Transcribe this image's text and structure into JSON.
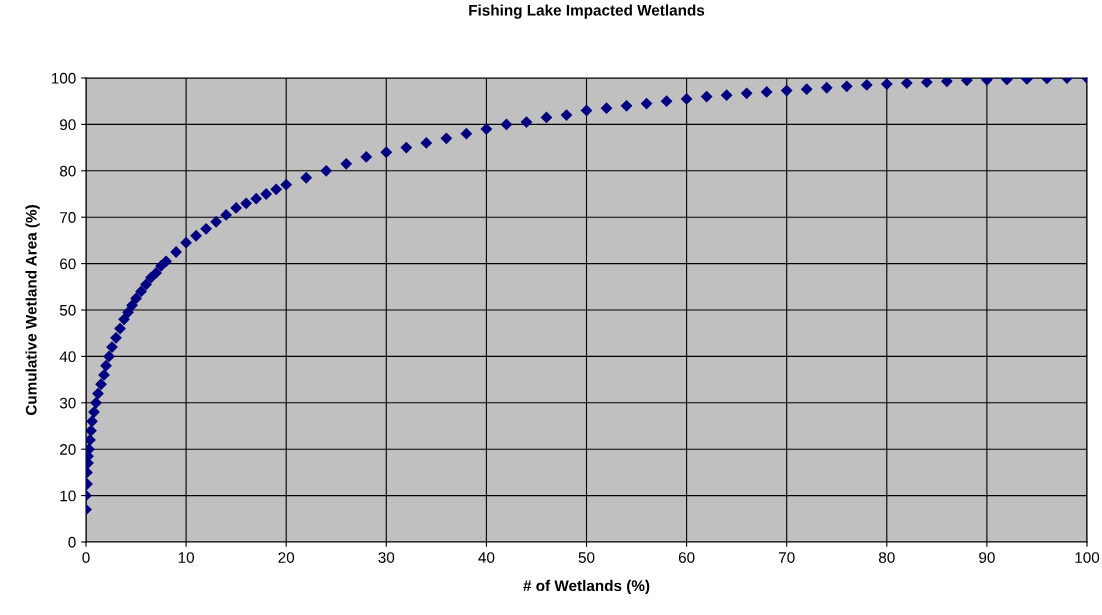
{
  "chart_data": {
    "type": "scatter",
    "title": "Fishing Lake Impacted Wetlands",
    "xlabel": "# of Wetlands (%)",
    "ylabel": "Cumulative Wetland Area (%)",
    "series": [
      {
        "color": "#000080",
        "x": [
          0,
          0,
          0.1,
          0.1,
          0.2,
          0.2,
          0.3,
          0.4,
          0.5,
          0.6,
          0.8,
          1,
          1.2,
          1.5,
          1.8,
          2,
          2.3,
          2.6,
          3,
          3.4,
          3.8,
          4.2,
          4.6,
          5,
          5.5,
          6,
          6.5,
          7,
          7.5,
          8,
          9,
          10,
          11,
          12,
          13,
          14,
          15,
          16,
          17,
          18,
          19,
          20,
          22,
          24,
          26,
          28,
          30,
          32,
          34,
          36,
          38,
          40,
          42,
          44,
          46,
          48,
          50,
          52,
          54,
          56,
          58,
          60,
          62,
          64,
          66,
          68,
          70,
          72,
          74,
          76,
          78,
          80,
          82,
          84,
          86,
          88,
          90,
          92,
          94,
          96,
          98,
          100
        ],
        "values": [
          7,
          10,
          12.5,
          15,
          17,
          18.5,
          20,
          22,
          24,
          26,
          28,
          30,
          32,
          34,
          36,
          38,
          40,
          42,
          44,
          46,
          48,
          49.5,
          51,
          52.5,
          54,
          55.5,
          57,
          58,
          59.5,
          60.5,
          62.5,
          64.5,
          66,
          67.5,
          69,
          70.5,
          72,
          73,
          74,
          75,
          76,
          77,
          78.5,
          80,
          81.5,
          83,
          84,
          85,
          86,
          87,
          88,
          89,
          90,
          90.5,
          91.5,
          92,
          93,
          93.5,
          94,
          94.5,
          95,
          95.5,
          96,
          96.3,
          96.7,
          97,
          97.3,
          97.6,
          97.9,
          98.2,
          98.5,
          98.7,
          98.9,
          99.1,
          99.3,
          99.5,
          99.6,
          99.7,
          99.8,
          99.9,
          100,
          100
        ]
      }
    ],
    "xlim": [
      0,
      100
    ],
    "xticks": [
      0,
      10,
      20,
      30,
      40,
      50,
      60,
      70,
      80,
      90,
      100
    ],
    "ylim": [
      0,
      100
    ],
    "yticks": [
      0,
      10,
      20,
      30,
      40,
      50,
      60,
      70,
      80,
      90,
      100
    ],
    "grid": true,
    "marker": "diamond"
  }
}
